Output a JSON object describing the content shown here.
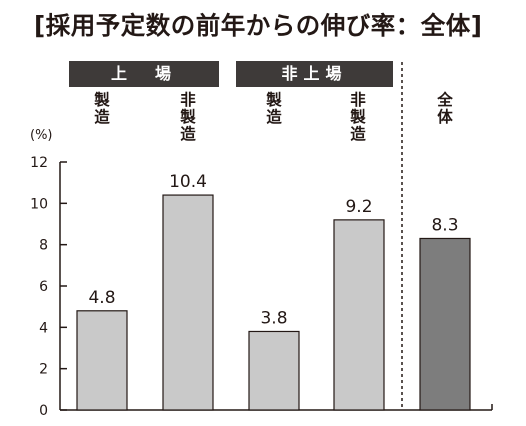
{
  "title": "[採用予定数の前年からの伸び率：全体]",
  "unit_label": "(%)",
  "group_headers": [
    "上　場",
    "非上場"
  ],
  "colors": {
    "bar_light": "#c9c9c9",
    "bar_dark": "#7d7d7d",
    "header_bg": "#3e3a39",
    "stroke": "#231815"
  },
  "chart_data": {
    "type": "bar",
    "categories": [
      "製造",
      "非製造",
      "製造",
      "非製造",
      "全体"
    ],
    "groups": [
      "上場",
      "上場",
      "非上場",
      "非上場",
      ""
    ],
    "values": [
      4.8,
      10.4,
      3.8,
      9.2,
      8.3
    ],
    "value_labels": [
      "4.8",
      "10.4",
      "3.8",
      "9.2",
      "8.3"
    ],
    "title": "[採用予定数の前年からの伸び率：全体]",
    "ylabel": "(%)",
    "ylim": [
      0,
      12
    ],
    "yticks": [
      0,
      2,
      4,
      6,
      8,
      10,
      12
    ],
    "grid": false,
    "highlighted_category": "全体"
  }
}
